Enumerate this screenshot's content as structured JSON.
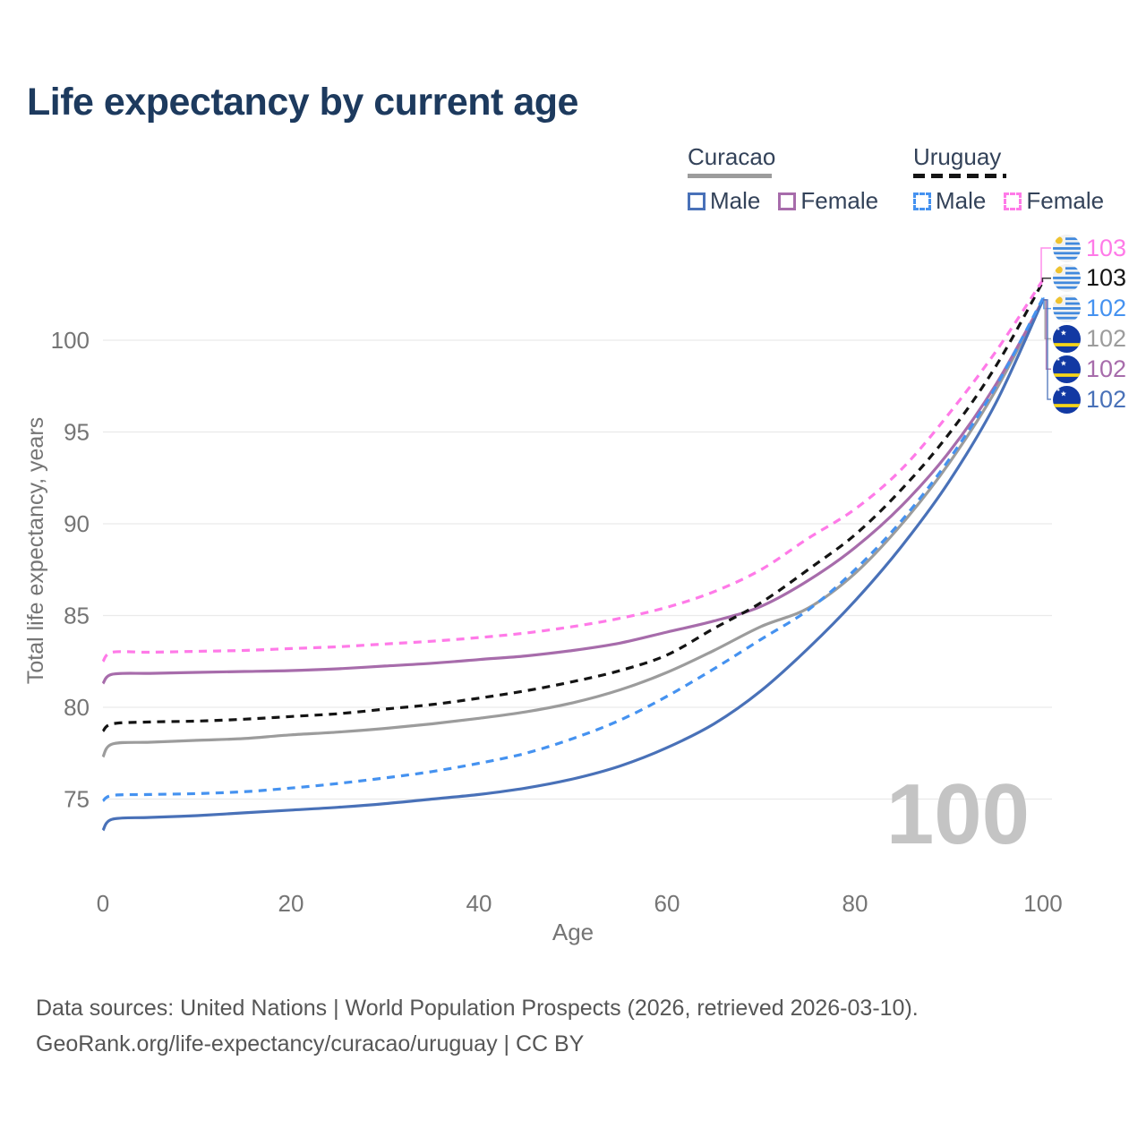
{
  "header": {
    "title": "Life expectancy by current age"
  },
  "legend": {
    "curacao": {
      "label": "Curacao",
      "male": "Male",
      "female": "Female"
    },
    "uruguay": {
      "label": "Uruguay",
      "male": "Male",
      "female": "Female"
    }
  },
  "footer": {
    "line1": "Data sources: United Nations | World Population Prospects (2026, retrieved 2026-03-10).",
    "line2": "GeoRank.org/life-expectancy/curacao/uruguay | CC BY"
  },
  "chart_data": {
    "type": "line",
    "title": "Life expectancy by current age",
    "xlabel": "Age",
    "ylabel": "Total life expectancy, years",
    "xticks": [
      0,
      20,
      40,
      60,
      80,
      100
    ],
    "yticks": [
      75,
      80,
      85,
      90,
      95,
      100
    ],
    "xlim": [
      0,
      100
    ],
    "ylim": [
      72,
      104
    ],
    "grid": "horizontal-only",
    "legend_position": "top-right",
    "age_indicator": "100",
    "anchor_ages": [
      0,
      1,
      5,
      10,
      15,
      20,
      25,
      30,
      35,
      40,
      45,
      50,
      55,
      60,
      65,
      70,
      75,
      80,
      85,
      90,
      95,
      100
    ],
    "series": [
      {
        "name": "Curacao combined",
        "country": "Curacao",
        "kind": "combined",
        "style": "solid",
        "color": "#9c9c9c",
        "values": [
          77.3,
          78.0,
          78.1,
          78.2,
          78.3,
          78.5,
          78.65,
          78.85,
          79.1,
          79.4,
          79.75,
          80.25,
          80.95,
          81.9,
          83.1,
          84.4,
          85.4,
          87.3,
          90.0,
          93.3,
          97.3,
          102.2
        ]
      },
      {
        "name": "Curacao Female",
        "country": "Curacao",
        "kind": "female",
        "style": "solid",
        "color": "#a76cab",
        "values": [
          81.3,
          81.8,
          81.85,
          81.9,
          81.95,
          82.0,
          82.1,
          82.25,
          82.4,
          82.6,
          82.8,
          83.1,
          83.5,
          84.1,
          84.7,
          85.5,
          86.9,
          88.7,
          91.0,
          93.9,
          97.6,
          102.2
        ]
      },
      {
        "name": "Curacao Male",
        "country": "Curacao",
        "kind": "male",
        "style": "solid",
        "color": "#4971b8",
        "values": [
          73.3,
          73.9,
          74.0,
          74.1,
          74.25,
          74.4,
          74.55,
          74.75,
          75.0,
          75.25,
          75.6,
          76.1,
          76.8,
          77.8,
          79.1,
          80.9,
          83.2,
          85.8,
          88.8,
          92.3,
          96.6,
          102.2
        ]
      },
      {
        "name": "Uruguay combined",
        "country": "Uruguay",
        "kind": "combined",
        "style": "dashed",
        "color": "#141414",
        "values": [
          78.7,
          79.1,
          79.2,
          79.25,
          79.35,
          79.5,
          79.65,
          79.9,
          80.15,
          80.5,
          80.9,
          81.4,
          82.0,
          82.85,
          84.3,
          85.7,
          87.5,
          89.4,
          91.9,
          94.9,
          98.6,
          103.2
        ]
      },
      {
        "name": "Uruguay Male",
        "country": "Uruguay",
        "kind": "male",
        "style": "dashed",
        "color": "#4592f0",
        "values": [
          74.9,
          75.2,
          75.25,
          75.3,
          75.4,
          75.6,
          75.85,
          76.15,
          76.5,
          76.95,
          77.5,
          78.3,
          79.3,
          80.6,
          82.1,
          83.7,
          85.3,
          87.5,
          90.2,
          93.5,
          97.5,
          102.3
        ]
      },
      {
        "name": "Uruguay Female",
        "country": "Uruguay",
        "kind": "female",
        "style": "dashed",
        "color": "#ff7ae8",
        "values": [
          82.5,
          83.0,
          83.0,
          83.05,
          83.1,
          83.2,
          83.3,
          83.45,
          83.6,
          83.8,
          84.05,
          84.4,
          84.85,
          85.45,
          86.3,
          87.5,
          89.2,
          90.8,
          93.0,
          96.0,
          99.4,
          103.3
        ]
      }
    ],
    "end_labels": [
      {
        "flag": "uruguay",
        "series": "Uruguay Female",
        "value": "103"
      },
      {
        "flag": "uruguay",
        "series": "Uruguay combined",
        "value": "103"
      },
      {
        "flag": "uruguay",
        "series": "Uruguay Male",
        "value": "102"
      },
      {
        "flag": "curacao",
        "series": "Curacao combined",
        "value": "102"
      },
      {
        "flag": "curacao",
        "series": "Curacao Female",
        "value": "102"
      },
      {
        "flag": "curacao",
        "series": "Curacao Male",
        "value": "102"
      }
    ]
  }
}
